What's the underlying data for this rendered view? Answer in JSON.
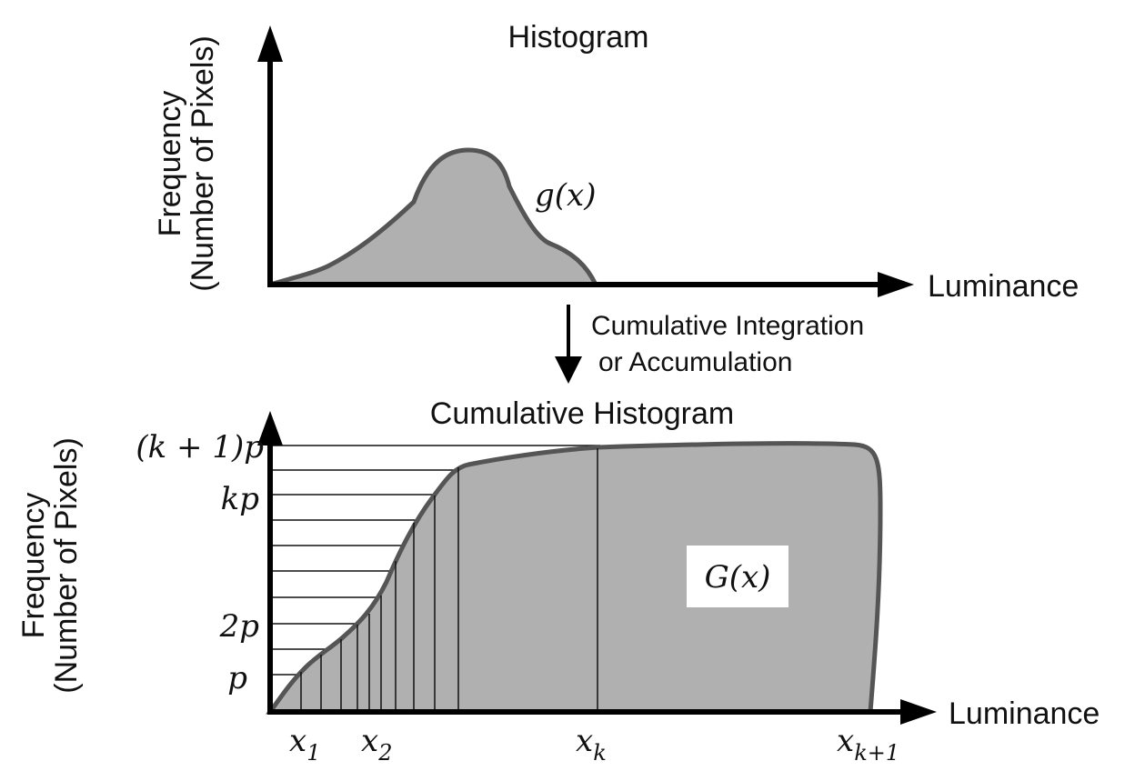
{
  "top": {
    "title": "Histogram",
    "y_axis_label": [
      "Frequency",
      "(Number of Pixels)"
    ],
    "x_axis_label": "Luminance",
    "curve_label": "g(x)"
  },
  "transition": [
    "Cumulative Integration",
    "or Accumulation"
  ],
  "bottom": {
    "title": "Cumulative Histogram",
    "y_axis_label": [
      "Frequency",
      "(Number of Pixels)"
    ],
    "x_axis_label": "Luminance",
    "curve_label": "G(x)",
    "y_labels": [
      "(k + 1)p",
      "kp",
      "2p",
      "p"
    ],
    "x_labels": [
      {
        "base": "x",
        "sub": "1"
      },
      {
        "base": "x",
        "sub": "2"
      },
      {
        "base": "x",
        "sub": "k"
      },
      {
        "base": "x",
        "sub": "k+1"
      }
    ]
  }
}
